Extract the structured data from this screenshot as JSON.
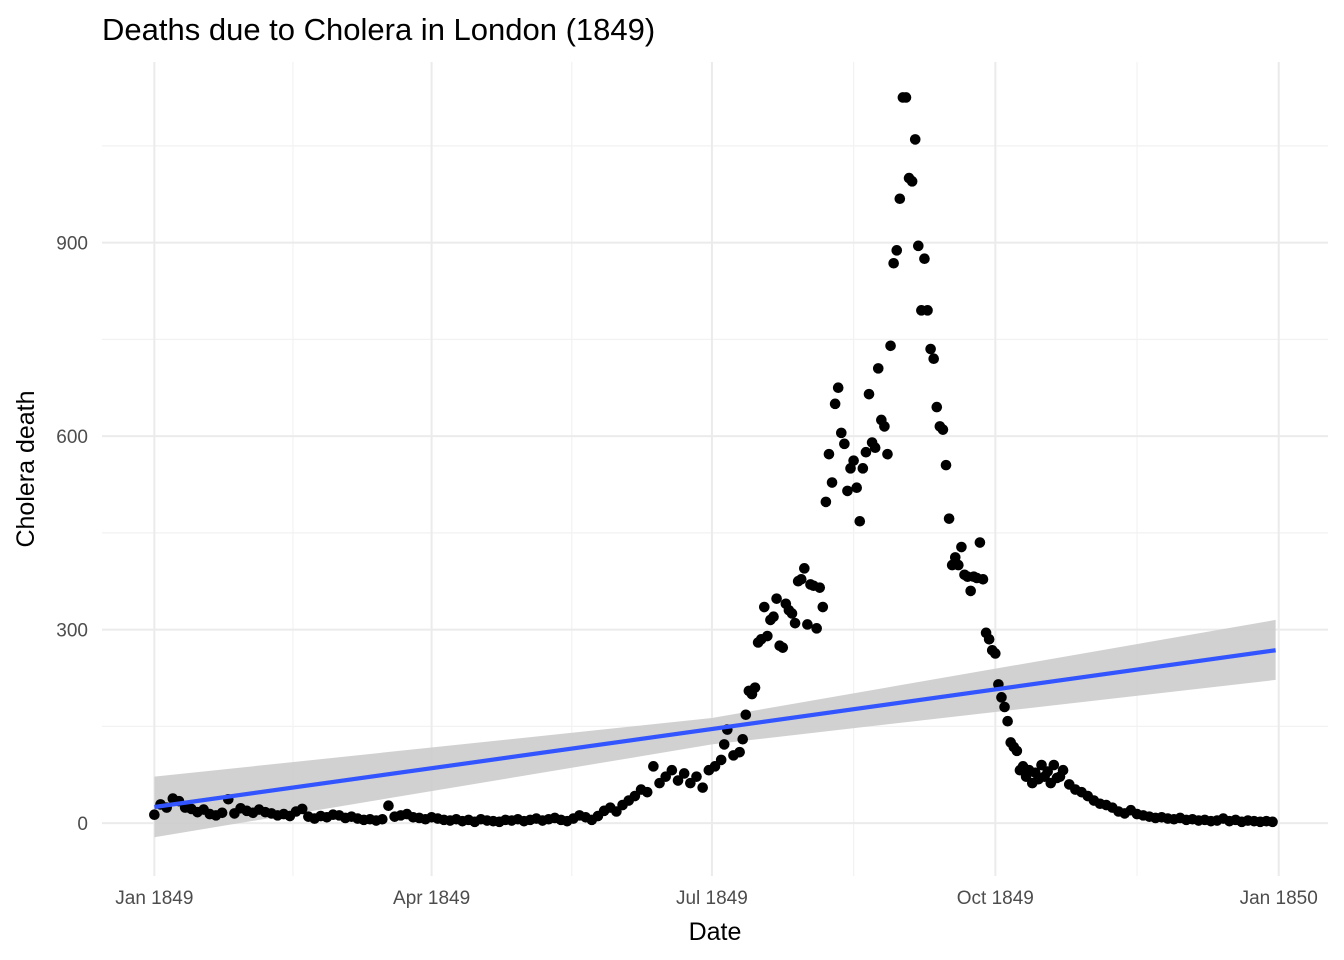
{
  "chart_data": {
    "type": "scatter",
    "title": "Deaths due to Cholera in London (1849)",
    "xlabel": "Date",
    "ylabel": "Cholera death",
    "xlim": [
      "1848-12-15",
      "1850-01-17"
    ],
    "ylim": [
      -82,
      1180
    ],
    "x_ticks": [
      {
        "date": "1849-01-01",
        "label": "Jan 1849"
      },
      {
        "date": "1849-04-01",
        "label": "Apr 1849"
      },
      {
        "date": "1849-07-01",
        "label": "Jul 1849"
      },
      {
        "date": "1849-10-01",
        "label": "Oct 1849"
      },
      {
        "date": "1850-01-01",
        "label": "Jan 1850"
      }
    ],
    "y_ticks": [
      0,
      300,
      600,
      900
    ],
    "grid": true,
    "series": [
      {
        "name": "",
        "type": "scatter",
        "color": "#000000",
        "points": [
          [
            "1849-01-01",
            13
          ],
          [
            "1849-01-03",
            29
          ],
          [
            "1849-01-05",
            24
          ],
          [
            "1849-01-07",
            38
          ],
          [
            "1849-01-09",
            34
          ],
          [
            "1849-01-11",
            24
          ],
          [
            "1849-01-13",
            22
          ],
          [
            "1849-01-15",
            17
          ],
          [
            "1849-01-17",
            21
          ],
          [
            "1849-01-19",
            14
          ],
          [
            "1849-01-21",
            12
          ],
          [
            "1849-01-23",
            16
          ],
          [
            "1849-01-25",
            37
          ],
          [
            "1849-01-27",
            15
          ],
          [
            "1849-01-29",
            23
          ],
          [
            "1849-01-31",
            19
          ],
          [
            "1849-02-02",
            16
          ],
          [
            "1849-02-04",
            21
          ],
          [
            "1849-02-06",
            17
          ],
          [
            "1849-02-08",
            15
          ],
          [
            "1849-02-10",
            12
          ],
          [
            "1849-02-12",
            14
          ],
          [
            "1849-02-14",
            11
          ],
          [
            "1849-02-16",
            18
          ],
          [
            "1849-02-18",
            22
          ],
          [
            "1849-02-20",
            10
          ],
          [
            "1849-02-22",
            7
          ],
          [
            "1849-02-24",
            11
          ],
          [
            "1849-02-26",
            9
          ],
          [
            "1849-02-28",
            13
          ],
          [
            "1849-03-02",
            12
          ],
          [
            "1849-03-04",
            8
          ],
          [
            "1849-03-06",
            10
          ],
          [
            "1849-03-08",
            7
          ],
          [
            "1849-03-10",
            5
          ],
          [
            "1849-03-12",
            6
          ],
          [
            "1849-03-14",
            4
          ],
          [
            "1849-03-16",
            6
          ],
          [
            "1849-03-18",
            27
          ],
          [
            "1849-03-20",
            10
          ],
          [
            "1849-03-22",
            12
          ],
          [
            "1849-03-24",
            14
          ],
          [
            "1849-03-26",
            9
          ],
          [
            "1849-03-28",
            8
          ],
          [
            "1849-03-30",
            6
          ],
          [
            "1849-04-01",
            9
          ],
          [
            "1849-04-03",
            7
          ],
          [
            "1849-04-05",
            5
          ],
          [
            "1849-04-07",
            4
          ],
          [
            "1849-04-09",
            6
          ],
          [
            "1849-04-11",
            3
          ],
          [
            "1849-04-13",
            5
          ],
          [
            "1849-04-15",
            2
          ],
          [
            "1849-04-17",
            6
          ],
          [
            "1849-04-19",
            4
          ],
          [
            "1849-04-21",
            3
          ],
          [
            "1849-04-23",
            2
          ],
          [
            "1849-04-25",
            5
          ],
          [
            "1849-04-27",
            4
          ],
          [
            "1849-04-29",
            6
          ],
          [
            "1849-05-01",
            3
          ],
          [
            "1849-05-03",
            5
          ],
          [
            "1849-05-05",
            7
          ],
          [
            "1849-05-07",
            4
          ],
          [
            "1849-05-09",
            6
          ],
          [
            "1849-05-11",
            8
          ],
          [
            "1849-05-13",
            5
          ],
          [
            "1849-05-15",
            3
          ],
          [
            "1849-05-17",
            7
          ],
          [
            "1849-05-19",
            12
          ],
          [
            "1849-05-21",
            9
          ],
          [
            "1849-05-23",
            5
          ],
          [
            "1849-05-25",
            11
          ],
          [
            "1849-05-27",
            19
          ],
          [
            "1849-05-29",
            24
          ],
          [
            "1849-05-31",
            18
          ],
          [
            "1849-06-02",
            28
          ],
          [
            "1849-06-04",
            35
          ],
          [
            "1849-06-06",
            42
          ],
          [
            "1849-06-08",
            52
          ],
          [
            "1849-06-10",
            48
          ],
          [
            "1849-06-12",
            88
          ],
          [
            "1849-06-14",
            62
          ],
          [
            "1849-06-16",
            72
          ],
          [
            "1849-06-18",
            82
          ],
          [
            "1849-06-20",
            66
          ],
          [
            "1849-06-22",
            77
          ],
          [
            "1849-06-24",
            62
          ],
          [
            "1849-06-26",
            72
          ],
          [
            "1849-06-28",
            55
          ],
          [
            "1849-06-30",
            82
          ],
          [
            "1849-07-02",
            88
          ],
          [
            "1849-07-04",
            98
          ],
          [
            "1849-07-05",
            122
          ],
          [
            "1849-07-06",
            145
          ],
          [
            "1849-07-08",
            105
          ],
          [
            "1849-07-10",
            110
          ],
          [
            "1849-07-11",
            130
          ],
          [
            "1849-07-12",
            168
          ],
          [
            "1849-07-13",
            205
          ],
          [
            "1849-07-14",
            200
          ],
          [
            "1849-07-15",
            210
          ],
          [
            "1849-07-16",
            280
          ],
          [
            "1849-07-17",
            285
          ],
          [
            "1849-07-18",
            335
          ],
          [
            "1849-07-19",
            290
          ],
          [
            "1849-07-20",
            315
          ],
          [
            "1849-07-21",
            320
          ],
          [
            "1849-07-22",
            348
          ],
          [
            "1849-07-23",
            275
          ],
          [
            "1849-07-24",
            272
          ],
          [
            "1849-07-25",
            340
          ],
          [
            "1849-07-26",
            330
          ],
          [
            "1849-07-27",
            325
          ],
          [
            "1849-07-28",
            310
          ],
          [
            "1849-07-29",
            375
          ],
          [
            "1849-07-30",
            378
          ],
          [
            "1849-07-31",
            395
          ],
          [
            "1849-08-01",
            308
          ],
          [
            "1849-08-02",
            370
          ],
          [
            "1849-08-03",
            368
          ],
          [
            "1849-08-04",
            302
          ],
          [
            "1849-08-05",
            365
          ],
          [
            "1849-08-06",
            335
          ],
          [
            "1849-08-07",
            498
          ],
          [
            "1849-08-08",
            572
          ],
          [
            "1849-08-09",
            528
          ],
          [
            "1849-08-10",
            650
          ],
          [
            "1849-08-11",
            675
          ],
          [
            "1849-08-12",
            605
          ],
          [
            "1849-08-13",
            588
          ],
          [
            "1849-08-14",
            515
          ],
          [
            "1849-08-15",
            550
          ],
          [
            "1849-08-16",
            562
          ],
          [
            "1849-08-17",
            520
          ],
          [
            "1849-08-18",
            468
          ],
          [
            "1849-08-19",
            550
          ],
          [
            "1849-08-20",
            575
          ],
          [
            "1849-08-21",
            665
          ],
          [
            "1849-08-22",
            590
          ],
          [
            "1849-08-23",
            582
          ],
          [
            "1849-08-24",
            705
          ],
          [
            "1849-08-25",
            625
          ],
          [
            "1849-08-26",
            615
          ],
          [
            "1849-08-27",
            572
          ],
          [
            "1849-08-28",
            740
          ],
          [
            "1849-08-29",
            868
          ],
          [
            "1849-08-30",
            888
          ],
          [
            "1849-08-31",
            968
          ],
          [
            "1849-09-01",
            1125
          ],
          [
            "1849-09-02",
            1125
          ],
          [
            "1849-09-03",
            1000
          ],
          [
            "1849-09-04",
            995
          ],
          [
            "1849-09-05",
            1060
          ],
          [
            "1849-09-06",
            895
          ],
          [
            "1849-09-08",
            875
          ],
          [
            "1849-09-07",
            795
          ],
          [
            "1849-09-09",
            795
          ],
          [
            "1849-09-10",
            735
          ],
          [
            "1849-09-11",
            720
          ],
          [
            "1849-09-12",
            645
          ],
          [
            "1849-09-13",
            615
          ],
          [
            "1849-09-14",
            610
          ],
          [
            "1849-09-15",
            555
          ],
          [
            "1849-09-16",
            472
          ],
          [
            "1849-09-17",
            400
          ],
          [
            "1849-09-18",
            412
          ],
          [
            "1849-09-19",
            400
          ],
          [
            "1849-09-20",
            428
          ],
          [
            "1849-09-21",
            385
          ],
          [
            "1849-09-22",
            382
          ],
          [
            "1849-09-23",
            360
          ],
          [
            "1849-09-24",
            382
          ],
          [
            "1849-09-25",
            380
          ],
          [
            "1849-09-26",
            435
          ],
          [
            "1849-09-27",
            378
          ],
          [
            "1849-09-28",
            295
          ],
          [
            "1849-09-29",
            285
          ],
          [
            "1849-09-30",
            268
          ],
          [
            "1849-10-01",
            263
          ],
          [
            "1849-10-02",
            215
          ],
          [
            "1849-10-03",
            195
          ],
          [
            "1849-10-04",
            180
          ],
          [
            "1849-10-05",
            158
          ],
          [
            "1849-10-06",
            125
          ],
          [
            "1849-10-07",
            118
          ],
          [
            "1849-10-08",
            112
          ],
          [
            "1849-10-09",
            82
          ],
          [
            "1849-10-10",
            88
          ],
          [
            "1849-10-11",
            72
          ],
          [
            "1849-10-12",
            82
          ],
          [
            "1849-10-13",
            62
          ],
          [
            "1849-10-14",
            78
          ],
          [
            "1849-10-15",
            68
          ],
          [
            "1849-10-16",
            90
          ],
          [
            "1849-10-17",
            72
          ],
          [
            "1849-10-18",
            80
          ],
          [
            "1849-10-19",
            62
          ],
          [
            "1849-10-20",
            90
          ],
          [
            "1849-10-21",
            70
          ],
          [
            "1849-10-22",
            72
          ],
          [
            "1849-10-23",
            82
          ],
          [
            "1849-10-25",
            60
          ],
          [
            "1849-10-27",
            52
          ],
          [
            "1849-10-29",
            48
          ],
          [
            "1849-10-31",
            42
          ],
          [
            "1849-11-02",
            35
          ],
          [
            "1849-11-04",
            30
          ],
          [
            "1849-11-06",
            28
          ],
          [
            "1849-11-08",
            24
          ],
          [
            "1849-11-10",
            18
          ],
          [
            "1849-11-12",
            15
          ],
          [
            "1849-11-14",
            20
          ],
          [
            "1849-11-16",
            14
          ],
          [
            "1849-11-18",
            12
          ],
          [
            "1849-11-20",
            10
          ],
          [
            "1849-11-22",
            8
          ],
          [
            "1849-11-24",
            9
          ],
          [
            "1849-11-26",
            7
          ],
          [
            "1849-11-28",
            6
          ],
          [
            "1849-11-30",
            8
          ],
          [
            "1849-12-02",
            5
          ],
          [
            "1849-12-04",
            6
          ],
          [
            "1849-12-06",
            4
          ],
          [
            "1849-12-08",
            5
          ],
          [
            "1849-12-10",
            3
          ],
          [
            "1849-12-12",
            4
          ],
          [
            "1849-12-14",
            7
          ],
          [
            "1849-12-16",
            3
          ],
          [
            "1849-12-18",
            5
          ],
          [
            "1849-12-20",
            2
          ],
          [
            "1849-12-22",
            4
          ],
          [
            "1849-12-24",
            3
          ],
          [
            "1849-12-26",
            2
          ],
          [
            "1849-12-28",
            3
          ],
          [
            "1849-12-30",
            2
          ]
        ]
      },
      {
        "name": "",
        "type": "line",
        "color": "#3355ff",
        "points": [
          [
            "1849-01-01",
            25
          ],
          [
            "1849-12-31",
            268
          ]
        ]
      },
      {
        "name": "",
        "type": "area",
        "color": "#cccccc",
        "upper": [
          [
            "1849-01-01",
            72
          ],
          [
            "1849-07-01",
            163
          ],
          [
            "1849-12-31",
            315
          ]
        ],
        "lower": [
          [
            "1849-01-01",
            -22
          ],
          [
            "1849-07-01",
            122
          ],
          [
            "1849-12-31",
            222
          ]
        ]
      }
    ]
  }
}
